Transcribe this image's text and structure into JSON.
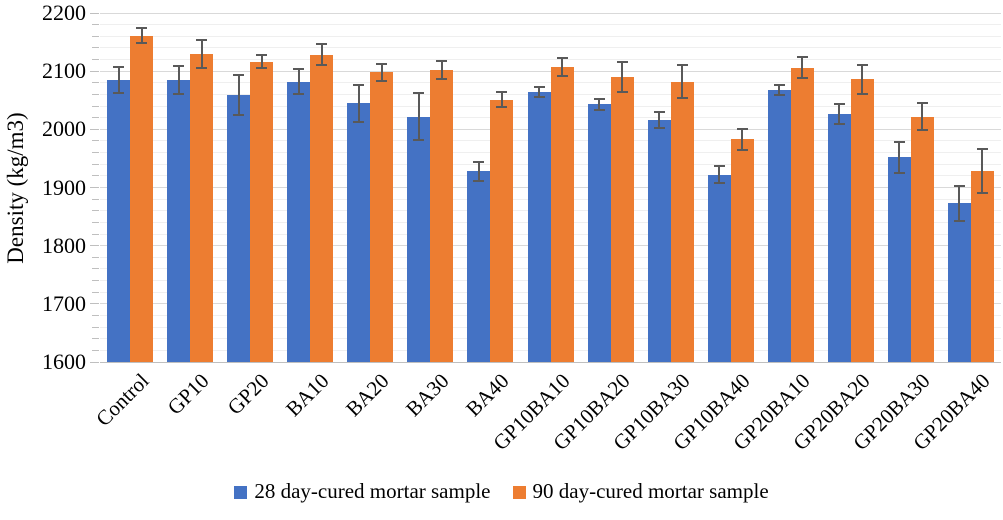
{
  "figure": {
    "y_axis_title": "Density (kg/m3)"
  },
  "chart_data": {
    "type": "bar",
    "title": "",
    "xlabel": "",
    "ylabel": "Density (kg/m3)",
    "ylim": [
      1600,
      2200
    ],
    "y_major_step": 100,
    "y_minor_step": 20,
    "grid": true,
    "legend_position": "bottom",
    "error_bars": true,
    "error_bar_color": "#595959",
    "categories": [
      "Control",
      "GP10",
      "GP20",
      "BA10",
      "BA20",
      "BA30",
      "BA40",
      "GP10BA10",
      "GP10BA20",
      "GP10BA30",
      "GP10BA40",
      "GP20BA10",
      "GP20BA20",
      "GP20BA30",
      "GP20BA40"
    ],
    "series": [
      {
        "name": "28 day-cured mortar sample",
        "color": "#4472C4",
        "values": [
          2085,
          2085,
          2059,
          2082,
          2045,
          2022,
          1928,
          2064,
          2043,
          2016,
          1922,
          2068,
          2027,
          1952,
          1873
        ],
        "errors": [
          22,
          24,
          35,
          21,
          32,
          40,
          16,
          9,
          10,
          14,
          15,
          9,
          17,
          27,
          30
        ]
      },
      {
        "name": "90 day-cured mortar sample",
        "color": "#ED7D31",
        "values": [
          2161,
          2130,
          2116,
          2128,
          2098,
          2102,
          2051,
          2107,
          2090,
          2082,
          1983,
          2106,
          2086,
          2022,
          1928
        ],
        "errors": [
          13,
          24,
          11,
          18,
          15,
          16,
          13,
          16,
          26,
          28,
          18,
          18,
          25,
          24,
          38
        ]
      }
    ]
  }
}
